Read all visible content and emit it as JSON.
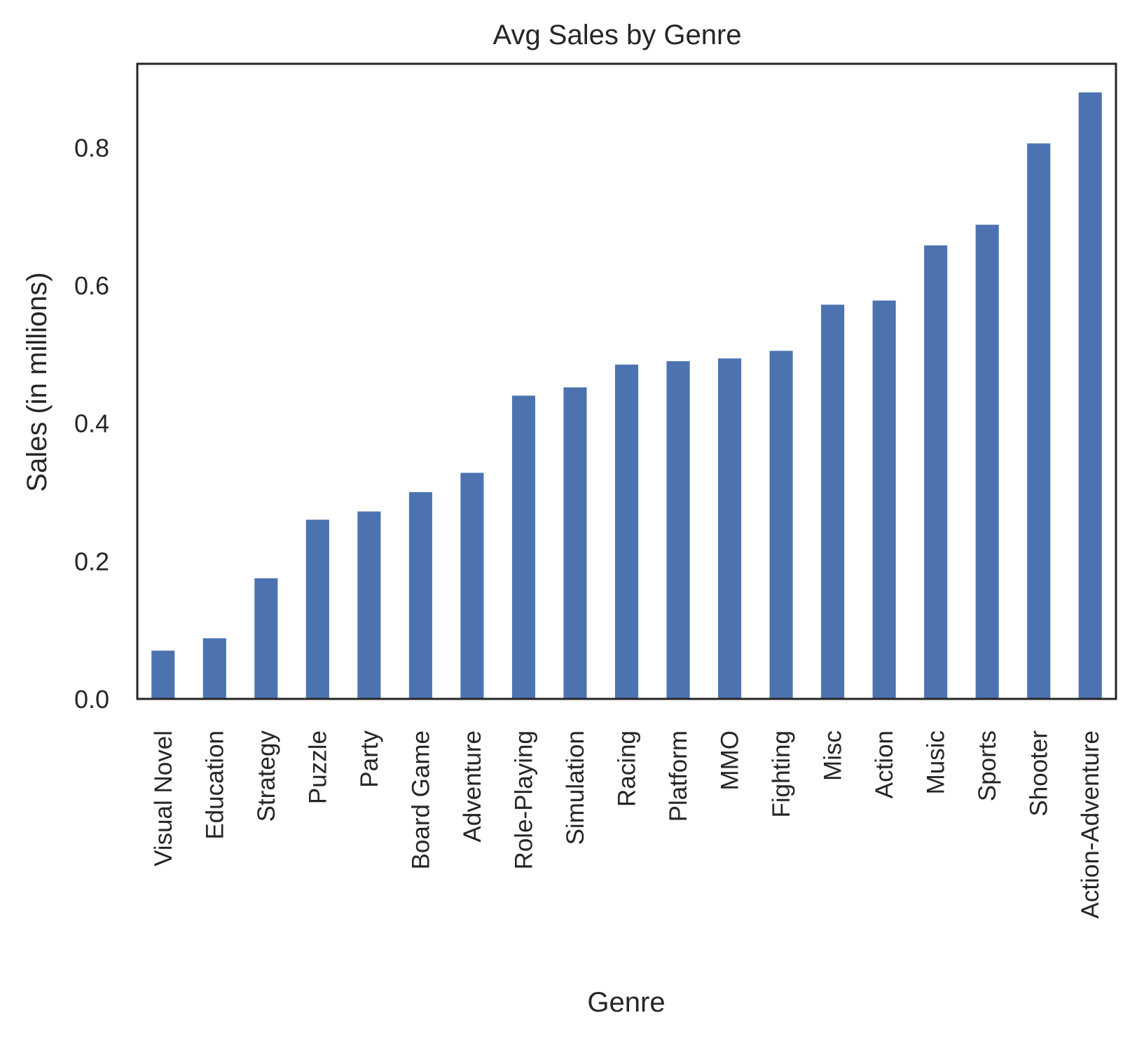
{
  "chart_data": {
    "type": "bar",
    "title": "Avg Sales by Genre",
    "xlabel": "Genre",
    "ylabel": "Sales (in millions)",
    "categories": [
      "Visual Novel",
      "Education",
      "Strategy",
      "Puzzle",
      "Party",
      "Board Game",
      "Adventure",
      "Role-Playing",
      "Simulation",
      "Racing",
      "Platform",
      "MMO",
      "Fighting",
      "Misc",
      "Action",
      "Music",
      "Sports",
      "Shooter",
      "Action-Adventure"
    ],
    "values": [
      0.07,
      0.088,
      0.175,
      0.26,
      0.272,
      0.3,
      0.328,
      0.44,
      0.452,
      0.485,
      0.49,
      0.494,
      0.505,
      0.572,
      0.578,
      0.658,
      0.688,
      0.806,
      0.88
    ],
    "ylim": [
      0,
      0.9215
    ],
    "yticks": [
      "0.0",
      "0.2",
      "0.4",
      "0.6",
      "0.8"
    ],
    "bar_color": "#4c72b0",
    "grid": false,
    "legend": "none"
  }
}
